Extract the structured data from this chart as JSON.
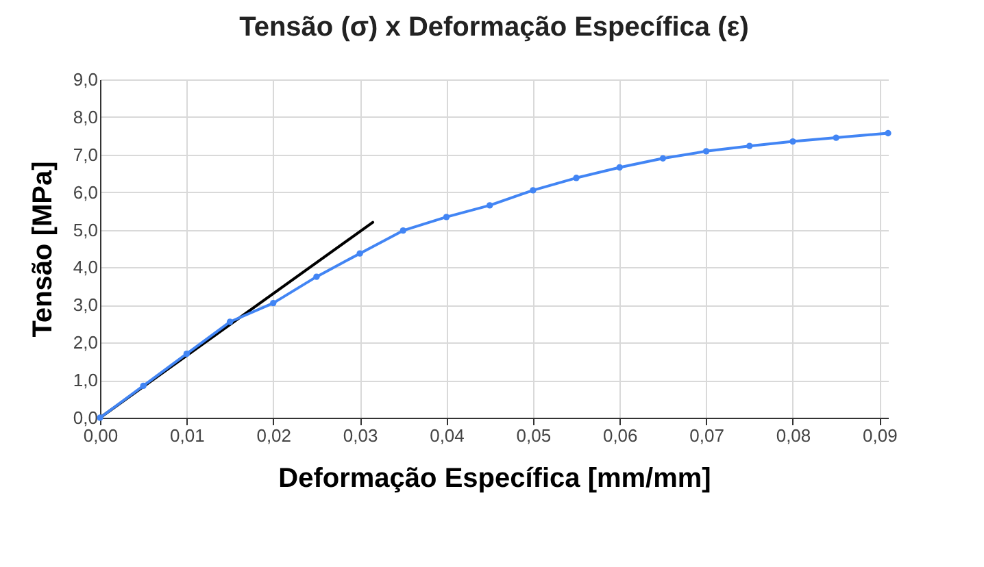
{
  "chart_data": {
    "type": "line",
    "title": "Tensão (σ) x Deformação Específica (ε)",
    "xlabel": "Deformação Específica [mm/mm]",
    "ylabel": "Tensão [MPa]",
    "xlim": [
      0,
      0.091
    ],
    "ylim": [
      0,
      9
    ],
    "xticks": [
      {
        "value": 0,
        "label": "0,00"
      },
      {
        "value": 0.01,
        "label": "0,01"
      },
      {
        "value": 0.02,
        "label": "0,02"
      },
      {
        "value": 0.03,
        "label": "0,03"
      },
      {
        "value": 0.04,
        "label": "0,04"
      },
      {
        "value": 0.05,
        "label": "0,05"
      },
      {
        "value": 0.06,
        "label": "0,06"
      },
      {
        "value": 0.07,
        "label": "0,07"
      },
      {
        "value": 0.08,
        "label": "0,08"
      },
      {
        "value": 0.09,
        "label": "0,09"
      }
    ],
    "yticks": [
      {
        "value": 0,
        "label": "0,0"
      },
      {
        "value": 1,
        "label": "1,0"
      },
      {
        "value": 2,
        "label": "2,0"
      },
      {
        "value": 3,
        "label": "3,0"
      },
      {
        "value": 4,
        "label": "4,0"
      },
      {
        "value": 5,
        "label": "5,0"
      },
      {
        "value": 6,
        "label": "6,0"
      },
      {
        "value": 7,
        "label": "7,0"
      },
      {
        "value": 8,
        "label": "8,0"
      },
      {
        "value": 9,
        "label": "9,0"
      }
    ],
    "grid": true,
    "series": [
      {
        "color": "#4285f4",
        "marker": "circle",
        "x": [
          0,
          0.005,
          0.01,
          0.015,
          0.02,
          0.025,
          0.03,
          0.035,
          0.04,
          0.045,
          0.05,
          0.055,
          0.06,
          0.065,
          0.07,
          0.075,
          0.08,
          0.085,
          0.091
        ],
        "values": [
          0,
          0.85,
          1.7,
          2.55,
          3.05,
          3.75,
          4.37,
          4.98,
          5.34,
          5.65,
          6.05,
          6.38,
          6.66,
          6.9,
          7.09,
          7.23,
          7.35,
          7.45,
          7.57
        ]
      },
      {
        "color": "#000000",
        "marker": "none",
        "x": [
          0,
          0.0315
        ],
        "values": [
          0,
          5.2
        ]
      }
    ]
  }
}
